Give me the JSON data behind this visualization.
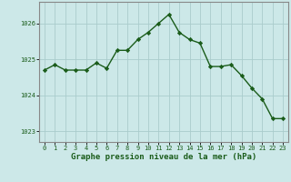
{
  "x": [
    0,
    1,
    2,
    3,
    4,
    5,
    6,
    7,
    8,
    9,
    10,
    11,
    12,
    13,
    14,
    15,
    16,
    17,
    18,
    19,
    20,
    21,
    22,
    23
  ],
  "y": [
    1024.7,
    1024.85,
    1024.7,
    1024.7,
    1024.7,
    1024.9,
    1024.75,
    1025.25,
    1025.25,
    1025.55,
    1025.75,
    1026.0,
    1026.25,
    1025.75,
    1025.55,
    1025.45,
    1024.8,
    1024.8,
    1024.85,
    1024.55,
    1024.2,
    1023.9,
    1023.35,
    1023.35
  ],
  "line_color": "#1a5c1a",
  "marker": "D",
  "marker_size": 2.2,
  "bg_color": "#cce8e8",
  "grid_color": "#aacccc",
  "xlabel": "Graphe pression niveau de la mer (hPa)",
  "xlabel_color": "#1a5c1a",
  "tick_color": "#1a5c1a",
  "yticks": [
    1023,
    1024,
    1025,
    1026
  ],
  "xticks": [
    0,
    1,
    2,
    3,
    4,
    5,
    6,
    7,
    8,
    9,
    10,
    11,
    12,
    13,
    14,
    15,
    16,
    17,
    18,
    19,
    20,
    21,
    22,
    23
  ],
  "xlim": [
    -0.5,
    23.5
  ],
  "ylim": [
    1022.7,
    1026.6
  ],
  "spine_color": "#888888",
  "linewidth": 1.0,
  "tick_fontsize": 5.0,
  "xlabel_fontsize": 6.5
}
